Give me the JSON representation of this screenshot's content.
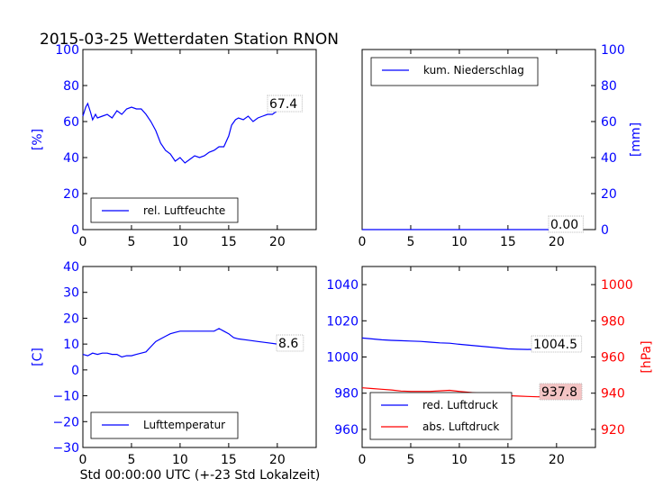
{
  "title": "2015-03-25 Wetterdaten Station RNON",
  "xlabel": "Std 00:00:00 UTC (+-23 Std Lokalzeit)",
  "colors": {
    "blue": "#0000ff",
    "red": "#ff0000",
    "black": "#000000"
  },
  "chart_data": [
    {
      "type": "line",
      "id": "humidity",
      "ylabel": "[%]",
      "xlim": [
        0,
        24
      ],
      "ylim": [
        0,
        100
      ],
      "xticks": [
        0,
        5,
        10,
        15,
        20
      ],
      "yticks": [
        0,
        20,
        40,
        60,
        80,
        100
      ],
      "legend": "bottom-left",
      "annotation": "67.4",
      "series": [
        {
          "name": "rel. Luftfeuchte",
          "color": "#0000ff",
          "x": [
            0,
            0.3,
            0.5,
            0.8,
            1,
            1.3,
            1.5,
            2,
            2.5,
            3,
            3.5,
            4,
            4.5,
            5,
            5.5,
            6,
            6.5,
            7,
            7.5,
            8,
            8.5,
            9,
            9.5,
            10,
            10.5,
            11,
            11.5,
            12,
            12.5,
            13,
            13.5,
            14,
            14.5,
            15,
            15.3,
            15.7,
            16,
            16.5,
            17,
            17.5,
            18,
            18.5,
            19,
            19.5,
            20,
            20.5,
            21,
            21.5,
            22
          ],
          "y": [
            63,
            68,
            70,
            65,
            61,
            64,
            62,
            63,
            64,
            62,
            66,
            64,
            67,
            68,
            67,
            67,
            64,
            60,
            55,
            48,
            44,
            42,
            38,
            40,
            37,
            39,
            41,
            40,
            41,
            43,
            44,
            46,
            46,
            52,
            58,
            61,
            62,
            61,
            63,
            60,
            62,
            63,
            64,
            64,
            66,
            67,
            66,
            68,
            67.4
          ]
        }
      ]
    },
    {
      "type": "line",
      "id": "precip",
      "ylabel": "[mm]",
      "xlim": [
        0,
        24
      ],
      "ylim": [
        0,
        100
      ],
      "xticks": [
        0,
        5,
        10,
        15,
        20
      ],
      "yticks": [
        0,
        20,
        40,
        60,
        80,
        100
      ],
      "legend": "top-left",
      "annotation": "0.00",
      "series": [
        {
          "name": "kum. Niederschlag",
          "color": "#0000ff",
          "x": [
            0,
            22
          ],
          "y": [
            0,
            0
          ]
        }
      ]
    },
    {
      "type": "line",
      "id": "temperature",
      "ylabel": "[C]",
      "xlim": [
        0,
        24
      ],
      "ylim": [
        -30,
        40
      ],
      "xticks": [
        0,
        5,
        10,
        15,
        20
      ],
      "yticks": [
        -30,
        -20,
        -10,
        0,
        10,
        20,
        30,
        40
      ],
      "legend": "bottom-left",
      "annotation": "8.6",
      "series": [
        {
          "name": "Lufttemperatur",
          "color": "#0000ff",
          "x": [
            0,
            0.5,
            1,
            1.5,
            2,
            2.5,
            3,
            3.5,
            4,
            4.5,
            5,
            5.5,
            6,
            6.5,
            7,
            7.5,
            8,
            8.5,
            9,
            9.5,
            10,
            11,
            12,
            13,
            13.5,
            14,
            14.5,
            15,
            15.5,
            16,
            17,
            18,
            19,
            20,
            21,
            22
          ],
          "y": [
            6,
            5.5,
            6.5,
            6,
            6.5,
            6.5,
            6,
            6,
            5,
            5.5,
            5.5,
            6,
            6.5,
            7,
            9,
            11,
            12,
            13,
            14,
            14.5,
            15,
            15,
            15,
            15,
            15,
            16,
            15,
            14,
            12.5,
            12,
            11.5,
            11,
            10.5,
            10,
            9.5,
            8.6
          ]
        }
      ]
    },
    {
      "type": "line",
      "id": "pressure",
      "ylabel_right": "[hPa]",
      "xlim": [
        0,
        24
      ],
      "ylim_left": [
        950,
        1050
      ],
      "ylim_right": [
        910,
        1010
      ],
      "xticks": [
        0,
        5,
        10,
        15,
        20
      ],
      "yticks_left": [
        960,
        980,
        1000,
        1020,
        1040
      ],
      "yticks_right": [
        920,
        940,
        960,
        980,
        1000
      ],
      "legend": "bottom-center",
      "annotation_left": "1004.5",
      "annotation_right": "937.8",
      "series": [
        {
          "name": "red. Luftdruck",
          "axis": "left",
          "color": "#0000ff",
          "x": [
            0,
            1,
            2,
            3,
            4,
            5,
            6,
            7,
            8,
            9,
            10,
            11,
            12,
            13,
            14,
            15,
            16,
            17,
            18,
            19,
            20,
            21,
            22
          ],
          "y": [
            1010.5,
            1010,
            1009.5,
            1009.2,
            1009,
            1008.8,
            1008.6,
            1008.2,
            1007.8,
            1007.6,
            1007,
            1006.5,
            1006,
            1005.5,
            1005,
            1004.5,
            1004.3,
            1004.2,
            1004.3,
            1004.2,
            1004.3,
            1004.4,
            1004.5
          ]
        },
        {
          "name": "abs. Luftdruck",
          "axis": "right",
          "color": "#ff0000",
          "x": [
            0,
            1,
            2,
            3,
            4,
            5,
            6,
            7,
            8,
            9,
            10,
            11,
            12,
            13,
            14,
            15,
            16,
            17,
            18,
            19,
            20,
            21,
            22
          ],
          "y": [
            943,
            942.6,
            942.2,
            941.8,
            941.2,
            941,
            941,
            941,
            941.3,
            941.6,
            941,
            940.5,
            940,
            939.5,
            939,
            938.6,
            938.4,
            938.2,
            938,
            937.9,
            937.8,
            937.8,
            937.8
          ]
        }
      ]
    }
  ]
}
